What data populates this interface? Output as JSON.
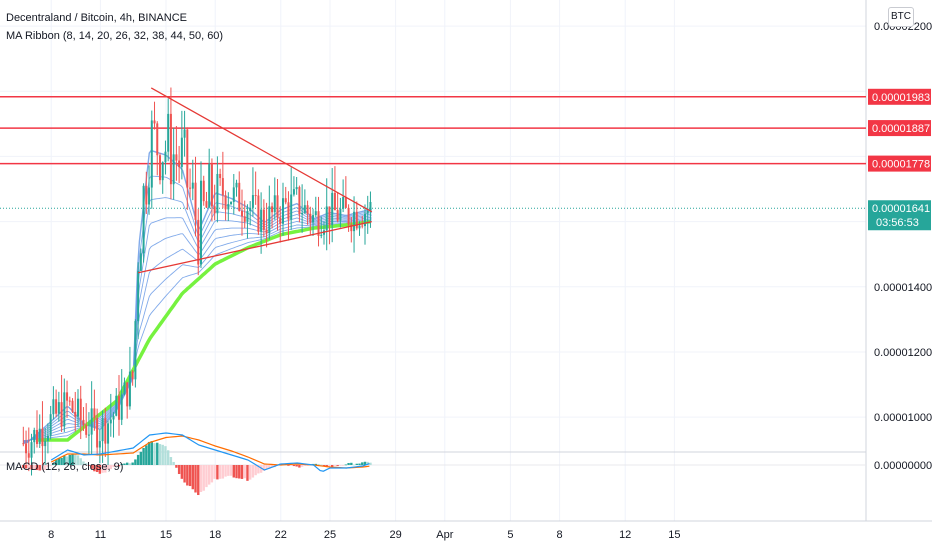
{
  "header": {
    "title": "Decentraland / Bitcoin, 4h, BINANCE",
    "indicator": "MA Ribbon (8, 14, 20, 26, 32, 38, 44, 50, 60)",
    "macd_label": "MACD (12, 26, close, 9)",
    "currency": "BTC"
  },
  "colors": {
    "up": "#26a69a",
    "down": "#ef5350",
    "ribbon": "#6b9be6",
    "ma_slow": "#76f23f",
    "support_resistance": "#f23645",
    "trendline": "#e53935",
    "macd_line": "#2196f3",
    "signal_line": "#ff6d00"
  },
  "chart_data": [
    {
      "type": "candlestick",
      "title": "Decentraland / Bitcoin, 4h, BINANCE",
      "indicator": "MA Ribbon (8, 14, 20, 26, 32, 38, 44, 50, 60)",
      "x_ticks": [
        "8",
        "11",
        "15",
        "18",
        "22",
        "25",
        "29",
        "Apr",
        "5",
        "8",
        "12",
        "15"
      ],
      "y_ticks": [
        "0.00002200",
        "0.00001400",
        "0.00001200",
        "0.00001000"
      ],
      "ylim": [
        8.9e-06,
        2.28e-05
      ],
      "horizontal_levels": [
        {
          "label": "0.00001983",
          "value": 1.983e-05
        },
        {
          "label": "0.00001887",
          "value": 1.887e-05
        },
        {
          "label": "0.00001778",
          "value": 1.778e-05
        }
      ],
      "last_price": {
        "label": "0.00001641",
        "value": 1.641e-05,
        "countdown": "03:56:53"
      },
      "trendlines": [
        {
          "name": "upper",
          "from": {
            "day": 14.1,
            "price": 2.01e-05
          },
          "to": {
            "day": 27.55,
            "price": 1.63e-05
          }
        },
        {
          "name": "lower",
          "from": {
            "day": 13.3,
            "price": 1.443e-05
          },
          "to": {
            "day": 27.55,
            "price": 1.6e-05
          }
        }
      ],
      "series_summary": {
        "ma_slow_points": [
          [
            9,
            9.3e-06
          ],
          [
            12,
            1.05e-05
          ],
          [
            14,
            1.24e-05
          ],
          [
            16,
            1.38e-05
          ],
          [
            18,
            1.47e-05
          ],
          [
            20,
            1.52e-05
          ],
          [
            22,
            1.56e-05
          ],
          [
            24,
            1.58e-05
          ],
          [
            26,
            1.59e-05
          ],
          [
            27.5,
            1.6e-05
          ]
        ],
        "price_path": [
          [
            6.5,
            9.2e-06
          ],
          [
            8,
            9.9e-06
          ],
          [
            9,
            1.04e-05
          ],
          [
            10,
            9.8e-06
          ],
          [
            11,
            9.6e-06
          ],
          [
            12,
            1.02e-05
          ],
          [
            13,
            1.12e-05
          ],
          [
            13.3,
            1.52e-05
          ],
          [
            14,
            1.85e-05
          ],
          [
            15,
            1.83e-05
          ],
          [
            16,
            1.78e-05
          ],
          [
            17,
            1.58e-05
          ],
          [
            18,
            1.7e-05
          ],
          [
            19,
            1.68e-05
          ],
          [
            20,
            1.65e-05
          ],
          [
            21,
            1.6e-05
          ],
          [
            22,
            1.64e-05
          ],
          [
            23,
            1.66e-05
          ],
          [
            24,
            1.61e-05
          ],
          [
            25,
            1.63e-05
          ],
          [
            26,
            1.62e-05
          ],
          [
            27.5,
            1.64e-05
          ]
        ]
      }
    },
    {
      "type": "macd",
      "title": "MACD (12, 26, close, 9)",
      "y_ticks": [
        "0.00000000"
      ],
      "zero_line": 0,
      "histogram_path": [
        [
          6.5,
          -6
        ],
        [
          7.5,
          -12
        ],
        [
          8.5,
          14
        ],
        [
          9.5,
          24
        ],
        [
          10.5,
          -8
        ],
        [
          11,
          -18
        ],
        [
          12,
          -2
        ],
        [
          13,
          6
        ],
        [
          14,
          48
        ],
        [
          15,
          38
        ],
        [
          16,
          -30
        ],
        [
          17,
          -60
        ],
        [
          18,
          -28
        ],
        [
          19,
          -22
        ],
        [
          20,
          -30
        ],
        [
          21,
          -10
        ],
        [
          22,
          2
        ],
        [
          23,
          -4
        ],
        [
          24,
          2
        ],
        [
          25,
          -4
        ],
        [
          26,
          2
        ],
        [
          27,
          4
        ],
        [
          27.5,
          6
        ]
      ],
      "macd_path": [
        [
          8,
          10
        ],
        [
          9,
          30
        ],
        [
          10,
          20
        ],
        [
          11,
          22
        ],
        [
          13,
          34
        ],
        [
          14,
          60
        ],
        [
          15,
          64
        ],
        [
          16,
          60
        ],
        [
          17,
          40
        ],
        [
          18,
          30
        ],
        [
          19,
          20
        ],
        [
          20,
          10
        ],
        [
          21,
          -10
        ],
        [
          22,
          2
        ],
        [
          23,
          4
        ],
        [
          24,
          0
        ],
        [
          24.5,
          -14
        ],
        [
          25,
          -6
        ],
        [
          26,
          -6
        ],
        [
          27,
          -2
        ],
        [
          27.5,
          4
        ]
      ],
      "signal_path": [
        [
          8,
          6
        ],
        [
          9,
          22
        ],
        [
          10,
          22
        ],
        [
          11,
          20
        ],
        [
          13,
          24
        ],
        [
          14,
          45
        ],
        [
          15,
          55
        ],
        [
          16,
          58
        ],
        [
          17,
          50
        ],
        [
          18,
          38
        ],
        [
          19,
          28
        ],
        [
          20,
          16
        ],
        [
          21,
          2
        ],
        [
          22,
          0
        ],
        [
          23,
          2
        ],
        [
          24,
          0
        ],
        [
          25,
          -4
        ],
        [
          26,
          -6
        ],
        [
          27,
          -4
        ],
        [
          27.5,
          -2
        ]
      ]
    }
  ]
}
